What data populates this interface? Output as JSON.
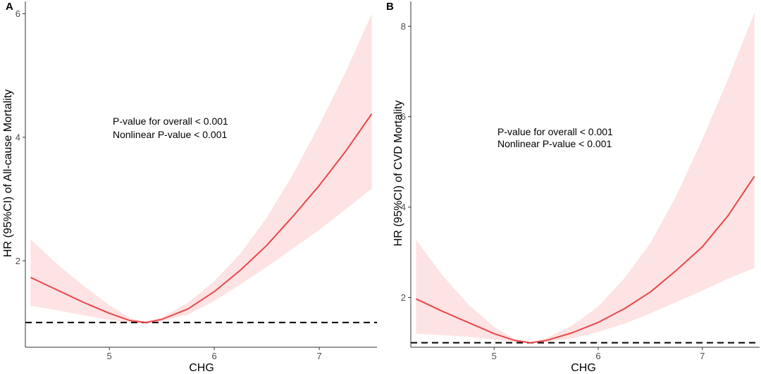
{
  "chart_data": [
    {
      "type": "line",
      "panel": "A",
      "xlabel": "CHG",
      "ylabel": "HR (95%CI) of All-cause Mortality",
      "xlim": [
        4.2,
        7.55
      ],
      "ylim": [
        0.6,
        6.2
      ],
      "xticks": [
        5,
        6,
        7
      ],
      "yticks": [
        2,
        4,
        6
      ],
      "reference_line": 1,
      "annotations": [
        "P-value for overall < 0.001",
        "Nonlinear P-value < 0.001"
      ],
      "series": [
        {
          "name": "HR",
          "x": [
            4.25,
            4.5,
            4.75,
            5.0,
            5.2,
            5.35,
            5.5,
            5.75,
            6.0,
            6.25,
            6.5,
            6.75,
            7.0,
            7.25,
            7.5
          ],
          "values": [
            1.73,
            1.53,
            1.33,
            1.15,
            1.03,
            1.0,
            1.05,
            1.22,
            1.5,
            1.85,
            2.25,
            2.72,
            3.22,
            3.77,
            4.38
          ]
        },
        {
          "name": "CI lower",
          "x": [
            4.25,
            4.5,
            4.75,
            5.0,
            5.2,
            5.35,
            5.5,
            5.75,
            6.0,
            6.25,
            6.5,
            6.75,
            7.0,
            7.25,
            7.5
          ],
          "values": [
            1.27,
            1.2,
            1.12,
            1.04,
            1.0,
            0.99,
            1.02,
            1.13,
            1.35,
            1.62,
            1.9,
            2.2,
            2.5,
            2.83,
            3.17
          ]
        },
        {
          "name": "CI upper",
          "x": [
            4.25,
            4.5,
            4.75,
            5.0,
            5.2,
            5.35,
            5.5,
            5.75,
            6.0,
            6.25,
            6.5,
            6.75,
            7.0,
            7.25,
            7.5
          ],
          "values": [
            2.35,
            1.95,
            1.6,
            1.28,
            1.07,
            1.01,
            1.08,
            1.32,
            1.67,
            2.12,
            2.7,
            3.4,
            4.2,
            5.05,
            6.0
          ]
        }
      ],
      "colors": {
        "line": "#e8474a",
        "band": "#fde3e3",
        "reference": "#000000"
      }
    },
    {
      "type": "line",
      "panel": "B",
      "xlabel": "CHG",
      "ylabel": "HR (95%CI) of CVD Mortality",
      "xlim": [
        4.2,
        7.55
      ],
      "ylim": [
        0.9,
        8.55
      ],
      "xticks": [
        5,
        6,
        7
      ],
      "yticks": [
        2,
        4,
        6,
        8
      ],
      "reference_line": 1,
      "annotations": [
        "P-value for overall < 0.001",
        "Nonlinear P-value < 0.001"
      ],
      "series": [
        {
          "name": "HR",
          "x": [
            4.25,
            4.5,
            4.75,
            5.0,
            5.2,
            5.35,
            5.5,
            5.75,
            6.0,
            6.25,
            6.5,
            6.75,
            7.0,
            7.25,
            7.5
          ],
          "values": [
            1.97,
            1.7,
            1.45,
            1.2,
            1.05,
            1.0,
            1.05,
            1.22,
            1.45,
            1.75,
            2.12,
            2.6,
            3.12,
            3.82,
            4.68
          ]
        },
        {
          "name": "CI lower",
          "x": [
            4.25,
            4.5,
            4.75,
            5.0,
            5.2,
            5.35,
            5.5,
            5.75,
            6.0,
            6.25,
            6.5,
            6.75,
            7.0,
            7.25,
            7.5
          ],
          "values": [
            1.2,
            1.17,
            1.13,
            1.07,
            1.01,
            0.99,
            1.01,
            1.1,
            1.24,
            1.42,
            1.65,
            1.9,
            2.15,
            2.42,
            2.65
          ]
        },
        {
          "name": "CI upper",
          "x": [
            4.25,
            4.5,
            4.75,
            5.0,
            5.2,
            5.35,
            5.5,
            5.75,
            6.0,
            6.25,
            6.5,
            6.75,
            7.0,
            7.25,
            7.5
          ],
          "values": [
            3.28,
            2.5,
            1.85,
            1.35,
            1.08,
            1.01,
            1.1,
            1.38,
            1.8,
            2.42,
            3.2,
            4.25,
            5.5,
            6.85,
            8.3
          ]
        }
      ],
      "colors": {
        "line": "#e8474a",
        "band": "#fde3e3",
        "reference": "#000000"
      }
    }
  ]
}
